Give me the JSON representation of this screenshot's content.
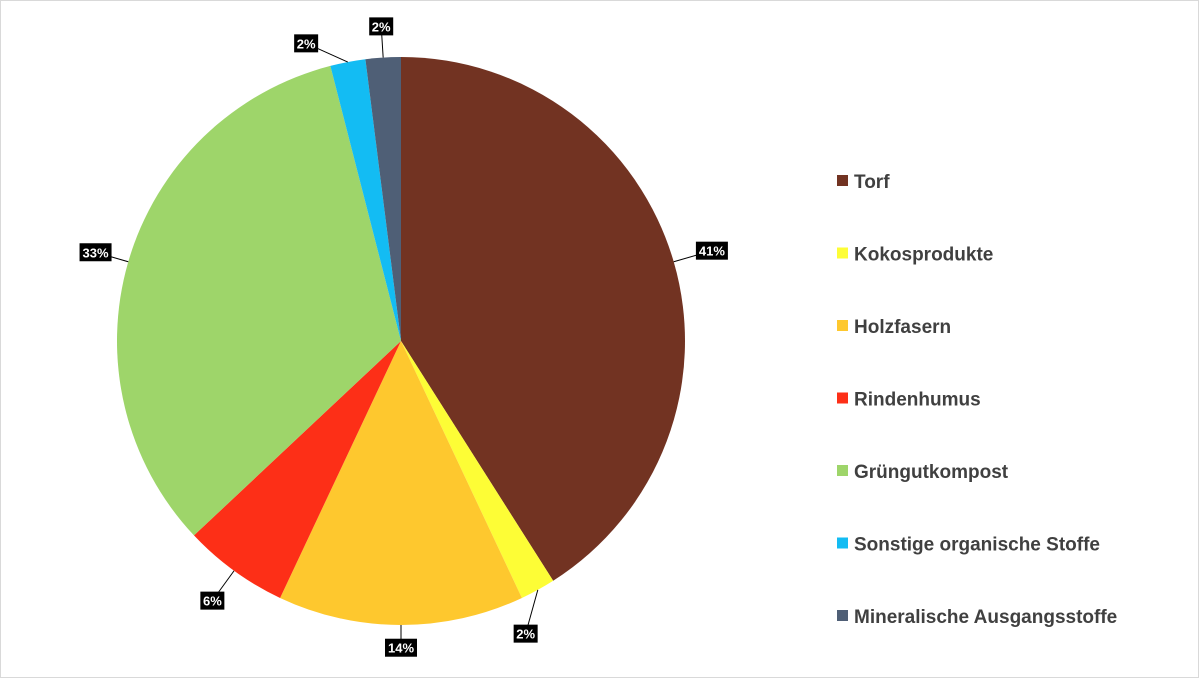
{
  "chart_data": {
    "type": "pie",
    "title": "",
    "legend_position": "right",
    "categories": [
      "Torf",
      "Kokosprodukte",
      "Holzfasern",
      "Rindenhumus",
      "Grüngutkompost",
      "Sonstige organische Stoffe",
      "Mineralische Ausgangsstoffe"
    ],
    "values": [
      41,
      2,
      14,
      6,
      33,
      2,
      2
    ],
    "data_labels": [
      "41%",
      "2%",
      "14%",
      "6%",
      "33%",
      "2%",
      "2%"
    ],
    "colors": [
      "#723322",
      "#fdfd36",
      "#fec82e",
      "#fd2f17",
      "#9ed56a",
      "#13bcf3",
      "#4f5f76"
    ]
  }
}
